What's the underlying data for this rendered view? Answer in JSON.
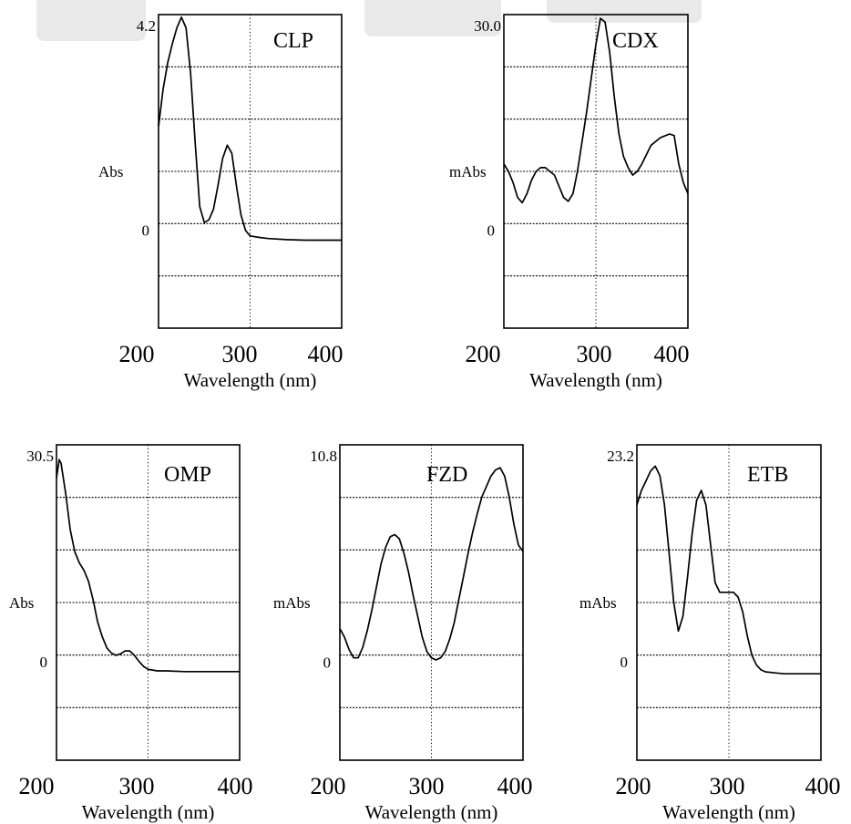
{
  "chart_data": [
    {
      "type": "line",
      "name": "CLP",
      "y_label": "Abs",
      "y_max_label": "4.2",
      "y_zero_label": "0",
      "xlabel": "Wavelength (nm)",
      "xlim": [
        200,
        400
      ],
      "x_ticks": [
        "200",
        "300",
        "400"
      ],
      "ylim": [
        -1.68,
        4.2
      ],
      "x": [
        200,
        205,
        210,
        215,
        220,
        225,
        230,
        235,
        240,
        245,
        250,
        255,
        260,
        265,
        270,
        275,
        280,
        285,
        290,
        295,
        300,
        310,
        320,
        340,
        360,
        380,
        400
      ],
      "y": [
        2.1,
        2.8,
        3.3,
        3.65,
        3.95,
        4.15,
        3.95,
        3.1,
        1.8,
        0.6,
        0.3,
        0.35,
        0.55,
        1.0,
        1.5,
        1.75,
        1.6,
        1.0,
        0.45,
        0.15,
        0.05,
        0.02,
        0.0,
        -0.02,
        -0.03,
        -0.03,
        -0.03
      ]
    },
    {
      "type": "line",
      "name": "CDX",
      "y_label": "mAbs",
      "y_max_label": "30.0",
      "y_zero_label": "0",
      "xlabel": "Wavelength (nm)",
      "xlim": [
        200,
        400
      ],
      "x_ticks": [
        "200",
        "300",
        "400"
      ],
      "ylim": [
        -12,
        30
      ],
      "x": [
        200,
        205,
        210,
        215,
        220,
        225,
        230,
        235,
        240,
        245,
        250,
        255,
        260,
        265,
        270,
        275,
        280,
        290,
        300,
        305,
        310,
        315,
        320,
        325,
        330,
        335,
        340,
        345,
        350,
        360,
        370,
        380,
        385,
        390,
        395,
        400
      ],
      "y": [
        10.0,
        9.0,
        7.5,
        5.5,
        4.8,
        6.0,
        7.8,
        9.0,
        9.5,
        9.5,
        9.0,
        8.5,
        7.0,
        5.5,
        5.0,
        6.0,
        9.0,
        17.0,
        26.0,
        29.5,
        29.0,
        25.0,
        19.0,
        14.0,
        11.0,
        9.5,
        8.5,
        9.0,
        10.0,
        12.5,
        13.5,
        14.0,
        13.8,
        10.0,
        7.5,
        6.0
      ]
    },
    {
      "type": "line",
      "name": "OMP",
      "y_label": "Abs",
      "y_max_label": "30.5",
      "y_zero_label": "0",
      "xlabel": "Wavelength (nm)",
      "xlim": [
        200,
        400
      ],
      "x_ticks": [
        "200",
        "300",
        "400"
      ],
      "ylim": [
        -12.2,
        30.5
      ],
      "x": [
        200,
        203,
        205,
        210,
        215,
        220,
        225,
        230,
        235,
        240,
        245,
        250,
        255,
        260,
        265,
        270,
        275,
        280,
        285,
        290,
        295,
        300,
        305,
        310,
        320,
        340,
        360,
        380,
        400
      ],
      "y": [
        26.0,
        28.5,
        28.0,
        24.0,
        19.0,
        16.0,
        14.5,
        13.5,
        12.0,
        9.5,
        6.5,
        4.5,
        3.0,
        2.3,
        2.0,
        2.2,
        2.6,
        2.6,
        2.0,
        1.2,
        0.5,
        0.1,
        0.0,
        -0.1,
        -0.1,
        -0.2,
        -0.2,
        -0.2,
        -0.2
      ]
    },
    {
      "type": "line",
      "name": "FZD",
      "y_label": "mAbs",
      "y_max_label": "10.8",
      "y_zero_label": "0",
      "xlabel": "Wavelength (nm)",
      "xlim": [
        200,
        400
      ],
      "x_ticks": [
        "200",
        "300",
        "400"
      ],
      "ylim": [
        -4.3,
        10.8
      ],
      "x": [
        200,
        205,
        210,
        215,
        220,
        225,
        230,
        235,
        240,
        245,
        250,
        255,
        260,
        265,
        270,
        275,
        280,
        285,
        290,
        295,
        300,
        305,
        310,
        315,
        320,
        325,
        330,
        335,
        340,
        345,
        350,
        355,
        360,
        365,
        370,
        375,
        380,
        385,
        390,
        395,
        400
      ],
      "y": [
        2.0,
        1.6,
        1.0,
        0.6,
        0.6,
        1.1,
        1.9,
        2.9,
        4.0,
        5.1,
        5.9,
        6.4,
        6.5,
        6.3,
        5.6,
        4.7,
        3.6,
        2.6,
        1.6,
        0.9,
        0.6,
        0.5,
        0.6,
        0.9,
        1.5,
        2.3,
        3.4,
        4.5,
        5.6,
        6.6,
        7.5,
        8.3,
        8.8,
        9.3,
        9.6,
        9.7,
        9.3,
        8.3,
        7.0,
        6.0,
        5.7
      ]
    },
    {
      "type": "line",
      "name": "ETB",
      "y_label": "mAbs",
      "y_max_label": "23.2",
      "y_zero_label": "0",
      "xlabel": "Wavelength (nm)",
      "xlim": [
        200,
        400
      ],
      "x_ticks": [
        "200",
        "300",
        "400"
      ],
      "ylim": [
        -9.3,
        23.2
      ],
      "x": [
        200,
        205,
        210,
        215,
        220,
        225,
        230,
        235,
        240,
        245,
        250,
        255,
        260,
        265,
        270,
        275,
        280,
        285,
        290,
        295,
        300,
        305,
        310,
        315,
        320,
        325,
        330,
        335,
        340,
        350,
        360,
        380,
        400
      ],
      "y": [
        17.0,
        18.5,
        19.5,
        20.5,
        21.0,
        20.0,
        17.0,
        12.0,
        7.0,
        4.0,
        5.5,
        9.5,
        14.0,
        17.5,
        18.5,
        17.0,
        13.0,
        9.0,
        8.0,
        8.0,
        8.0,
        8.0,
        7.5,
        6.0,
        3.5,
        1.5,
        0.5,
        0.0,
        -0.2,
        -0.3,
        -0.4,
        -0.4,
        -0.4
      ]
    }
  ]
}
